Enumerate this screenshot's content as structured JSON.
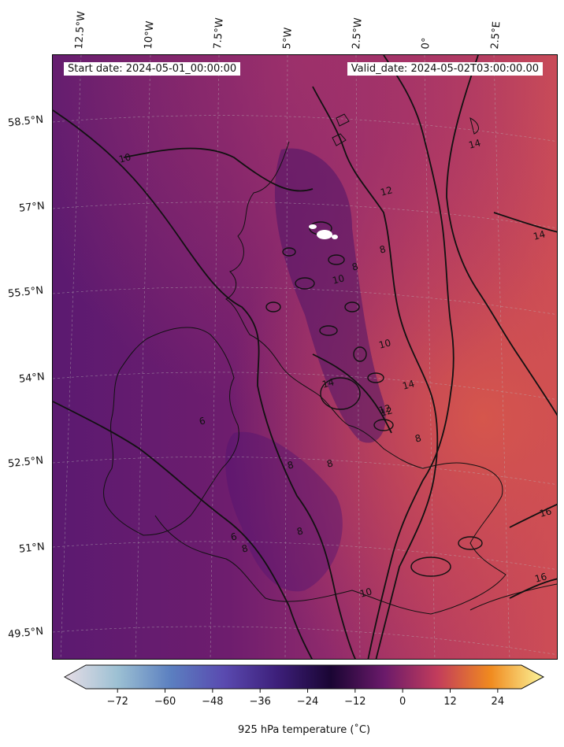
{
  "map": {
    "start_date": "Start date: 2024-05-01_00:00:00",
    "valid_date": "Valid_date: 2024-05-02T03:00:00.00",
    "longitude_labels": [
      "12.5°W",
      "10°W",
      "7.5°W",
      "5°W",
      "2.5°W",
      "0°",
      "2.5°E"
    ],
    "latitude_labels": [
      "58.5°N",
      "57°N",
      "55.5°N",
      "54°N",
      "52.5°N",
      "51°N",
      "49.5°N"
    ],
    "contour_labels": [
      "10",
      "12",
      "14",
      "14",
      "16",
      "16",
      "12",
      "10",
      "14",
      "14",
      "12",
      "10",
      "8",
      "8",
      "8",
      "6",
      "6",
      "8",
      "10",
      "8",
      "8",
      "8"
    ],
    "colors": {
      "cool": "#5a1670",
      "mid": "#8e2a6b",
      "warm": "#c9435a",
      "hot": "#d65845"
    }
  },
  "colorbar": {
    "label": "925 hPa temperature ($^\\circ$C)",
    "label_display": "925 hPa temperature (˚C)",
    "ticks": [
      "−72",
      "−60",
      "−48",
      "−36",
      "−24",
      "−12",
      "0",
      "12",
      "24"
    ],
    "range": [
      -80,
      30
    ],
    "colormap": [
      "#e6dde6",
      "#9cc0d3",
      "#5b7fc0",
      "#5a4ab0",
      "#3d1f7a",
      "#1a0533",
      "#6a1a6a",
      "#c23c5c",
      "#f08a1f",
      "#fbf59a"
    ]
  }
}
